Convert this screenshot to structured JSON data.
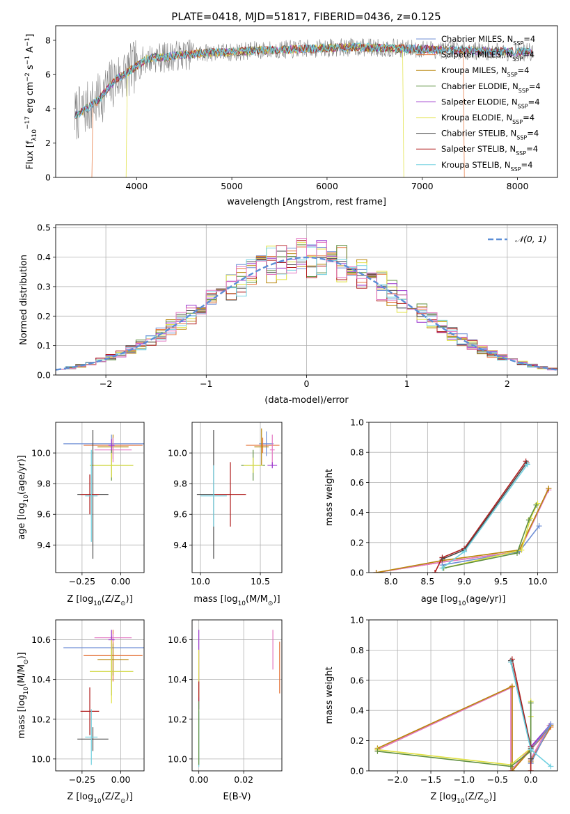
{
  "figure": {
    "title": "PLATE=0418, MJD=51817, FIBERID=0436, z=0.125"
  },
  "colors": {
    "chabrier_miles": "#6f8fd6",
    "salpeter_miles": "#e5733a",
    "kroupa_miles": "#b8860b",
    "chabrier_elodie": "#5f8f3f",
    "salpeter_elodie": "#9932cc",
    "kroupa_elodie": "#e0e040",
    "chabrier_stelib": "#4a4a4a",
    "salpeter_stelib": "#b01c1c",
    "kroupa_stelib": "#70d0e0",
    "pink": "#e377c2",
    "normal_curve": "#5b8ed6",
    "grid": "#b0b0b0",
    "spectrum_data": "#808080"
  },
  "chart_data": [
    {
      "id": "spectrum",
      "type": "line",
      "title": "PLATE=0418, MJD=51817, FIBERID=0436, z=0.125",
      "xlabel": "wavelength [Angstrom, rest frame]",
      "ylabel_parts": [
        "Flux [f",
        "λ",
        "10",
        "−17",
        " erg cm",
        "−2",
        " s",
        "−1",
        " A",
        "−1",
        "]"
      ],
      "xlim": [
        3150,
        8420
      ],
      "ylim": [
        0,
        8.85
      ],
      "xticks": [
        4000,
        5000,
        6000,
        7000,
        8000
      ],
      "xtick_labels": [
        "4000",
        "5000",
        "6000",
        "7000",
        "8000"
      ],
      "yticks": [
        0,
        2,
        4,
        6,
        8
      ],
      "ytick_labels": [
        "0",
        "2",
        "4",
        "6",
        "8"
      ],
      "grid": false,
      "legend_position": "right",
      "legend": [
        {
          "name": "Chabrier MILES, N",
          "sub": "SSP",
          "tail": "=4",
          "color_key": "chabrier_miles"
        },
        {
          "name": "Salpeter MILES, N",
          "sub": "SSP",
          "tail": "=4",
          "color_key": "salpeter_miles"
        },
        {
          "name": "Kroupa MILES, N",
          "sub": "SSP",
          "tail": "=4",
          "color_key": "kroupa_miles"
        },
        {
          "name": "Chabrier ELODIE, N",
          "sub": "SSP",
          "tail": "=4",
          "color_key": "chabrier_elodie"
        },
        {
          "name": "Salpeter ELODIE, N",
          "sub": "SSP",
          "tail": "=4",
          "color_key": "salpeter_elodie"
        },
        {
          "name": "Kroupa ELODIE, N",
          "sub": "SSP",
          "tail": "=4",
          "color_key": "kroupa_elodie"
        },
        {
          "name": "Chabrier STELIB, N",
          "sub": "SSP",
          "tail": "=4",
          "color_key": "chabrier_stelib"
        },
        {
          "name": "Salpeter STELIB, N",
          "sub": "SSP",
          "tail": "=4",
          "color_key": "salpeter_stelib"
        },
        {
          "name": "Kroupa STELIB, N",
          "sub": "SSP",
          "tail": "=4",
          "color_key": "kroupa_stelib"
        }
      ],
      "continuum": {
        "wavelength": [
          3350,
          3500,
          3600,
          3700,
          3800,
          3900,
          4000,
          4100,
          4200,
          4300,
          4400,
          4600,
          4800,
          5000,
          5200,
          5500,
          5800,
          6000,
          6300,
          6600,
          6900,
          7200,
          7500,
          7800,
          8100
        ],
        "flux": [
          3.6,
          4.1,
          4.5,
          5.2,
          5.8,
          6.1,
          6.5,
          6.9,
          7.0,
          7.0,
          7.1,
          7.2,
          7.3,
          7.3,
          7.4,
          7.45,
          7.5,
          7.55,
          7.6,
          7.55,
          7.5,
          7.45,
          7.4,
          7.35,
          7.3
        ]
      },
      "model_cutoffs": [
        {
          "series": "Salpeter MILES",
          "wavelength_min": 3540,
          "wavelength_max": 7430,
          "color_key": "salpeter_miles"
        },
        {
          "series": "Kroupa ELODIE",
          "wavelength_min": 3900,
          "wavelength_max": 6800,
          "color_key": "kroupa_elodie"
        }
      ]
    },
    {
      "id": "residuals",
      "type": "line",
      "xlabel": "(data-model)/error",
      "ylabel": "Normed distribution",
      "xlim": [
        -2.5,
        2.5
      ],
      "ylim": [
        0,
        0.51
      ],
      "xticks": [
        -2,
        -1,
        0,
        1,
        2
      ],
      "xtick_labels": [
        "−2",
        "−1",
        "0",
        "1",
        "2"
      ],
      "yticks": [
        0,
        0.1,
        0.2,
        0.3,
        0.4,
        0.5
      ],
      "ytick_labels": [
        "0.0",
        "0.1",
        "0.2",
        "0.3",
        "0.4",
        "0.5"
      ],
      "grid": true,
      "legend_position": "top-right",
      "legend": [
        {
          "name": "𝒩(0, 1)",
          "color_key": "normal_curve",
          "style": "dashed"
        }
      ],
      "bin_width": 0.1,
      "bin_start": -2.5
    },
    {
      "id": "z-age",
      "type": "scatter",
      "xlabel_parts": [
        "Z [log",
        "10",
        "(Z/Z",
        "⊙",
        ")]"
      ],
      "ylabel_parts": [
        "age  [log",
        "10",
        "(age/yr)]"
      ],
      "xlim": [
        -0.42,
        0.15
      ],
      "ylim": [
        9.22,
        10.2
      ],
      "xticks": [
        -0.25,
        0.0
      ],
      "xtick_labels": [
        "−0.25",
        "0.00"
      ],
      "yticks": [
        9.4,
        9.6,
        9.8,
        10.0
      ],
      "ytick_labels": [
        "9.4",
        "9.6",
        "9.8",
        "10.0"
      ],
      "grid": true,
      "points": [
        {
          "x": -0.06,
          "y": 10.06,
          "xerr": 0.31,
          "yerr": 0.06,
          "color_key": "chabrier_miles"
        },
        {
          "x": -0.05,
          "y": 10.05,
          "xerr": 0.19,
          "yerr": 0.05,
          "color_key": "salpeter_miles"
        },
        {
          "x": -0.05,
          "y": 10.04,
          "xerr": 0.1,
          "yerr": 0.08,
          "color_key": "kroupa_miles"
        },
        {
          "x": -0.05,
          "y": 10.02,
          "xerr": 0.12,
          "yerr": 0.08,
          "color_key": "pink"
        },
        {
          "x": -0.06,
          "y": 10.05,
          "xerr": 0.02,
          "yerr": 0.04,
          "color_key": "salpeter_elodie"
        },
        {
          "x": -0.06,
          "y": 9.92,
          "xerr": 0.14,
          "yerr": 0.1,
          "color_key": "chabrier_elodie"
        },
        {
          "x": -0.06,
          "y": 9.92,
          "xerr": 0.14,
          "yerr": 0.08,
          "color_key": "kroupa_elodie"
        },
        {
          "x": -0.18,
          "y": 9.73,
          "xerr": 0.1,
          "yerr": 0.42,
          "color_key": "chabrier_stelib"
        },
        {
          "x": -0.2,
          "y": 9.73,
          "xerr": 0.06,
          "yerr": 0.13,
          "color_key": "salpeter_stelib"
        },
        {
          "x": -0.19,
          "y": 9.72,
          "xerr": 0.04,
          "yerr": 0.3,
          "color_key": "kroupa_stelib"
        }
      ]
    },
    {
      "id": "mass-age",
      "type": "scatter",
      "xlabel_parts": [
        "mass [log",
        "10",
        "(M/M",
        "⊙",
        ")]"
      ],
      "xlim": [
        9.93,
        10.68
      ],
      "ylim": [
        9.22,
        10.2
      ],
      "xticks": [
        10.0,
        10.5
      ],
      "xtick_labels": [
        "10.0",
        "10.5"
      ],
      "yticks": [
        9.4,
        9.6,
        9.8,
        10.0
      ],
      "ytick_labels": [
        "9.4",
        "9.6",
        "9.8",
        "10.0"
      ],
      "grid": true,
      "points": [
        {
          "x": 10.55,
          "y": 10.06,
          "xerr": 0.06,
          "yerr": 0.08,
          "color_key": "chabrier_miles"
        },
        {
          "x": 10.52,
          "y": 10.05,
          "xerr": 0.14,
          "yerr": 0.05,
          "color_key": "salpeter_miles"
        },
        {
          "x": 10.51,
          "y": 10.04,
          "xerr": 0.06,
          "yerr": 0.12,
          "color_key": "kroupa_miles"
        },
        {
          "x": 10.6,
          "y": 10.02,
          "xerr": 0.02,
          "yerr": 0.1,
          "color_key": "pink"
        },
        {
          "x": 10.6,
          "y": 9.92,
          "xerr": 0.04,
          "yerr": 0.02,
          "color_key": "salpeter_elodie"
        },
        {
          "x": 10.44,
          "y": 9.92,
          "xerr": 0.1,
          "yerr": 0.1,
          "color_key": "chabrier_elodie"
        },
        {
          "x": 10.44,
          "y": 9.92,
          "xerr": 0.08,
          "yerr": 0.05,
          "color_key": "kroupa_elodie"
        },
        {
          "x": 10.11,
          "y": 9.73,
          "xerr": 0.14,
          "yerr": 0.42,
          "color_key": "chabrier_stelib"
        },
        {
          "x": 10.25,
          "y": 9.73,
          "xerr": 0.13,
          "yerr": 0.21,
          "color_key": "salpeter_stelib"
        },
        {
          "x": 10.11,
          "y": 9.72,
          "xerr": 0.11,
          "yerr": 0.2,
          "color_key": "kroupa_stelib"
        }
      ]
    },
    {
      "id": "age-weight",
      "type": "line",
      "xlabel_parts": [
        "age  [log",
        "10",
        "(age/yr)]"
      ],
      "ylabel": "mass weight",
      "xlim": [
        7.7,
        10.27
      ],
      "ylim": [
        0,
        1.0
      ],
      "xticks": [
        8.0,
        8.5,
        9.0,
        9.5,
        10.0
      ],
      "xtick_labels": [
        "8.0",
        "8.5",
        "9.0",
        "9.5",
        "10.0"
      ],
      "yticks": [
        0,
        0.2,
        0.4,
        0.6,
        0.8,
        1.0
      ],
      "ytick_labels": [
        "0.0",
        "0.2",
        "0.4",
        "0.6",
        "0.8",
        "1.0"
      ],
      "grid": true,
      "series": [
        {
          "color_key": "salpeter_miles",
          "x": [
            7.8,
            8.7,
            9.75,
            10.15
          ],
          "y": [
            0.0,
            0.07,
            0.14,
            0.56
          ]
        },
        {
          "color_key": "pink",
          "x": [
            7.8,
            8.7,
            9.75,
            10.15
          ],
          "y": [
            0.0,
            0.07,
            0.14,
            0.55
          ]
        },
        {
          "color_key": "kroupa_miles",
          "x": [
            7.8,
            8.7,
            9.75,
            10.15
          ],
          "y": [
            0.0,
            0.08,
            0.15,
            0.56
          ]
        },
        {
          "color_key": "chabrier_miles",
          "x": [
            8.7,
            9.75,
            10.02
          ],
          "y": [
            0.05,
            0.14,
            0.31
          ]
        },
        {
          "color_key": "kroupa_elodie",
          "x": [
            8.72,
            9.78,
            9.9,
            10.0
          ],
          "y": [
            0.03,
            0.15,
            0.36,
            0.46
          ]
        },
        {
          "color_key": "chabrier_elodie",
          "x": [
            8.72,
            9.72,
            9.88,
            9.98
          ],
          "y": [
            0.03,
            0.13,
            0.35,
            0.45
          ]
        },
        {
          "color_key": "salpeter_stelib",
          "x": [
            8.6,
            8.7,
            9.0,
            9.84
          ],
          "y": [
            0.0,
            0.1,
            0.16,
            0.74
          ]
        },
        {
          "color_key": "chabrier_stelib",
          "x": [
            8.7,
            9.0,
            9.85
          ],
          "y": [
            0.09,
            0.15,
            0.73
          ]
        },
        {
          "color_key": "kroupa_stelib",
          "x": [
            8.7,
            9.0,
            9.86
          ],
          "y": [
            0.03,
            0.14,
            0.72
          ]
        }
      ]
    },
    {
      "id": "z-mass",
      "type": "scatter",
      "xlabel_parts": [
        "Z [log",
        "10",
        "(Z/Z",
        "⊙",
        ")]"
      ],
      "ylabel_parts": [
        "mass [log",
        "10",
        "(M/M",
        "⊙",
        ")]"
      ],
      "xlim": [
        -0.42,
        0.15
      ],
      "ylim": [
        9.94,
        10.7
      ],
      "xticks": [
        -0.25,
        0.0
      ],
      "xtick_labels": [
        "−0.25",
        "0.00"
      ],
      "yticks": [
        10.0,
        10.2,
        10.4,
        10.6
      ],
      "ytick_labels": [
        "10.0",
        "10.2",
        "10.4",
        "10.6"
      ],
      "grid": true,
      "points": [
        {
          "x": -0.06,
          "y": 10.56,
          "xerr": 0.31,
          "yerr": 0.06,
          "color_key": "chabrier_miles"
        },
        {
          "x": -0.05,
          "y": 10.52,
          "xerr": 0.19,
          "yerr": 0.13,
          "color_key": "salpeter_miles"
        },
        {
          "x": -0.05,
          "y": 10.5,
          "xerr": 0.1,
          "yerr": 0.08,
          "color_key": "kroupa_miles"
        },
        {
          "x": -0.05,
          "y": 10.61,
          "xerr": 0.12,
          "yerr": 0.02,
          "color_key": "pink"
        },
        {
          "x": -0.06,
          "y": 10.6,
          "xerr": 0.02,
          "yerr": 0.05,
          "color_key": "salpeter_elodie"
        },
        {
          "x": -0.06,
          "y": 10.44,
          "xerr": 0.14,
          "yerr": 0.12,
          "color_key": "chabrier_elodie"
        },
        {
          "x": -0.06,
          "y": 10.44,
          "xerr": 0.14,
          "yerr": 0.16,
          "color_key": "kroupa_elodie"
        },
        {
          "x": -0.18,
          "y": 10.1,
          "xerr": 0.1,
          "yerr": 0.06,
          "color_key": "chabrier_stelib"
        },
        {
          "x": -0.2,
          "y": 10.24,
          "xerr": 0.06,
          "yerr": 0.12,
          "color_key": "salpeter_stelib"
        },
        {
          "x": -0.19,
          "y": 10.11,
          "xerr": 0.04,
          "yerr": 0.14,
          "color_key": "kroupa_stelib"
        }
      ]
    },
    {
      "id": "ebv-mass",
      "type": "scatter",
      "xlabel": "E(B-V)",
      "xlim": [
        -0.003,
        0.037
      ],
      "ylim": [
        9.94,
        10.7
      ],
      "xticks": [
        0.0,
        0.02
      ],
      "xtick_labels": [
        "0.00",
        "0.02"
      ],
      "yticks": [
        10.0,
        10.2,
        10.4,
        10.6
      ],
      "ytick_labels": [
        "10.0",
        "10.2",
        "10.4",
        "10.6"
      ],
      "grid": true,
      "points": [
        {
          "x": 0.0,
          "y": 10.45,
          "yerr": 0.2,
          "color_key": "salpeter_elodie"
        },
        {
          "x": 0.0,
          "y": 10.43,
          "yerr": 0.12,
          "color_key": "kroupa_elodie"
        },
        {
          "x": 0.0,
          "y": 10.34,
          "yerr": 0.05,
          "color_key": "salpeter_stelib"
        },
        {
          "x": 0.0,
          "y": 10.1,
          "yerr": 0.14,
          "color_key": "kroupa_stelib"
        },
        {
          "x": 0.0,
          "y": 10.13,
          "yerr": 0.16,
          "color_key": "chabrier_elodie"
        },
        {
          "x": 0.033,
          "y": 10.55,
          "yerr": 0.1,
          "color_key": "pink"
        },
        {
          "x": 0.036,
          "y": 10.46,
          "yerr": 0.13,
          "color_key": "salpeter_miles"
        }
      ]
    },
    {
      "id": "z-weight",
      "type": "line",
      "xlabel_parts": [
        "Z [log",
        "10",
        "(Z/Z",
        "⊙",
        ")]"
      ],
      "ylabel": "mass weight",
      "xlim": [
        -2.43,
        0.4
      ],
      "ylim": [
        0,
        1.0
      ],
      "xticks": [
        -2.0,
        -1.5,
        -1.0,
        -0.5,
        0.0
      ],
      "xtick_labels": [
        "−2.0",
        "−1.5",
        "−1.0",
        "−0.5",
        "0.0"
      ],
      "yticks": [
        0,
        0.2,
        0.4,
        0.6,
        0.8,
        1.0
      ],
      "ytick_labels": [
        "0.0",
        "0.2",
        "0.4",
        "0.6",
        "0.8",
        "1.0"
      ],
      "grid": true,
      "series": [
        {
          "color_key": "salpeter_miles",
          "x": [
            -2.3,
            -0.28,
            -0.28,
            0.3,
            0.0,
            0.0
          ],
          "y": [
            0.14,
            0.56,
            0.0,
            0.29,
            0.07,
            0.0
          ]
        },
        {
          "color_key": "pink",
          "x": [
            -2.3,
            -0.3,
            -0.3,
            0.28,
            0.0
          ],
          "y": [
            0.14,
            0.55,
            0.0,
            0.3,
            0.08
          ]
        },
        {
          "color_key": "kroupa_miles",
          "x": [
            -2.3,
            -0.28,
            -0.28,
            0.3,
            0.0
          ],
          "y": [
            0.15,
            0.56,
            0.0,
            0.3,
            0.06
          ]
        },
        {
          "color_key": "salpeter_elodie",
          "x": [
            0.0,
            0.3
          ],
          "y": [
            0.16,
            0.31
          ]
        },
        {
          "color_key": "chabrier_miles",
          "x": [
            0.0,
            0.3,
            0.0
          ],
          "y": [
            0.14,
            0.31,
            0.05
          ]
        },
        {
          "color_key": "kroupa_elodie",
          "x": [
            -2.3,
            -0.3,
            0.0,
            0.0,
            0.0
          ],
          "y": [
            0.14,
            0.04,
            0.15,
            0.36,
            0.46
          ]
        },
        {
          "color_key": "chabrier_elodie",
          "x": [
            -2.3,
            -0.3,
            0.0,
            0.0
          ],
          "y": [
            0.13,
            0.03,
            0.13,
            0.45
          ]
        },
        {
          "color_key": "salpeter_stelib",
          "x": [
            -0.28,
            0.0,
            0.0
          ],
          "y": [
            0.74,
            0.16,
            0.0
          ]
        },
        {
          "color_key": "chabrier_stelib",
          "x": [
            -0.3,
            0.0,
            0.0
          ],
          "y": [
            0.73,
            0.15,
            0.08
          ]
        },
        {
          "color_key": "kroupa_stelib",
          "x": [
            -0.3,
            0.0,
            0.3
          ],
          "y": [
            0.72,
            0.14,
            0.03
          ]
        }
      ]
    }
  ]
}
